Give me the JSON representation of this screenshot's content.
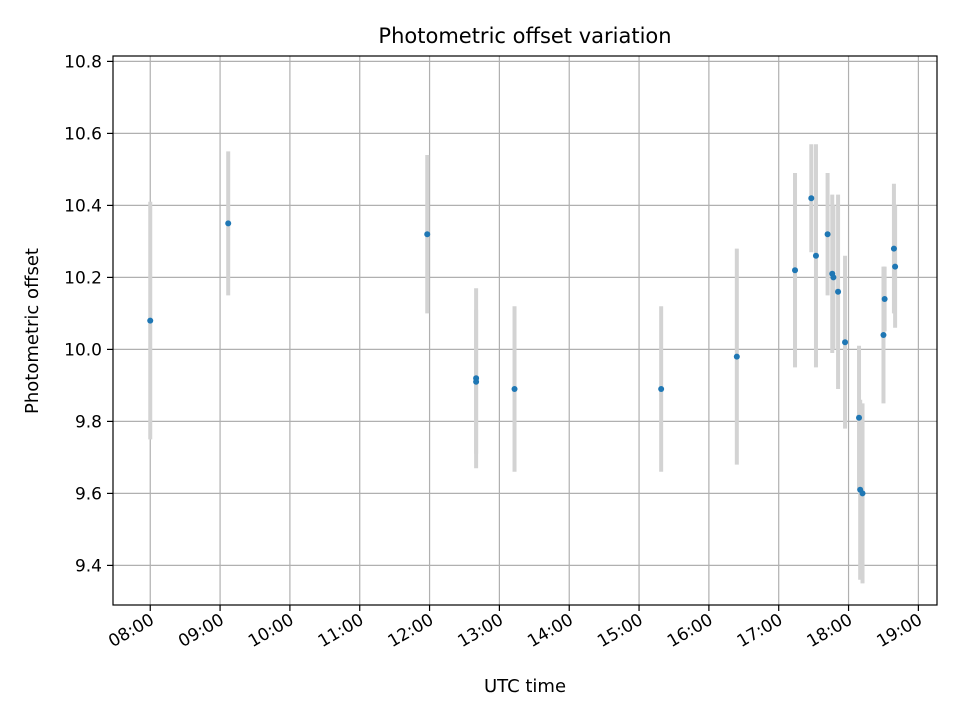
{
  "chart_data": {
    "type": "scatter",
    "title": "Photometric offset variation",
    "xlabel": "UTC time",
    "ylabel": "Photometric offset",
    "x_ticks": [
      "08:00",
      "09:00",
      "10:00",
      "11:00",
      "12:00",
      "13:00",
      "14:00",
      "15:00",
      "16:00",
      "17:00",
      "18:00",
      "19:00"
    ],
    "y_ticks": [
      "9.4",
      "9.6",
      "9.8",
      "10.0",
      "10.2",
      "10.4",
      "10.6",
      "10.8"
    ],
    "xlim": [
      "07:28",
      "19:16"
    ],
    "ylim": [
      9.29,
      10.815
    ],
    "grid": true,
    "colors": {
      "points": "#1f77b4",
      "errorbars": "#d3d3d3",
      "grid": "#b0b0b0"
    },
    "points": [
      {
        "x": "08:00",
        "y": 10.08,
        "err": 0.33
      },
      {
        "x": "09:07",
        "y": 10.35,
        "err": 0.2
      },
      {
        "x": "11:58",
        "y": 10.32,
        "err": 0.22
      },
      {
        "x": "12:40",
        "y": 9.92,
        "err": 0.25
      },
      {
        "x": "12:40",
        "y": 9.91,
        "err": 0.2
      },
      {
        "x": "13:13",
        "y": 9.89,
        "err": 0.23
      },
      {
        "x": "15:19",
        "y": 9.89,
        "err": 0.23
      },
      {
        "x": "16:24",
        "y": 9.98,
        "err": 0.3
      },
      {
        "x": "17:14",
        "y": 10.22,
        "err": 0.27
      },
      {
        "x": "17:28",
        "y": 10.42,
        "err": 0.15
      },
      {
        "x": "17:32",
        "y": 10.26,
        "err": 0.31
      },
      {
        "x": "17:42",
        "y": 10.32,
        "err": 0.17
      },
      {
        "x": "17:46",
        "y": 10.21,
        "err": 0.22
      },
      {
        "x": "17:47",
        "y": 10.2,
        "err": 0.2
      },
      {
        "x": "17:51",
        "y": 10.16,
        "err": 0.27
      },
      {
        "x": "17:57",
        "y": 10.02,
        "err": 0.24
      },
      {
        "x": "18:09",
        "y": 9.81,
        "err": 0.2
      },
      {
        "x": "18:10",
        "y": 9.61,
        "err": 0.25
      },
      {
        "x": "18:12",
        "y": 9.6,
        "err": 0.25
      },
      {
        "x": "18:30",
        "y": 10.04,
        "err": 0.19
      },
      {
        "x": "18:31",
        "y": 10.14,
        "err": 0.09
      },
      {
        "x": "18:39",
        "y": 10.28,
        "err": 0.18
      },
      {
        "x": "18:40",
        "y": 10.23,
        "err": 0.17
      }
    ]
  }
}
